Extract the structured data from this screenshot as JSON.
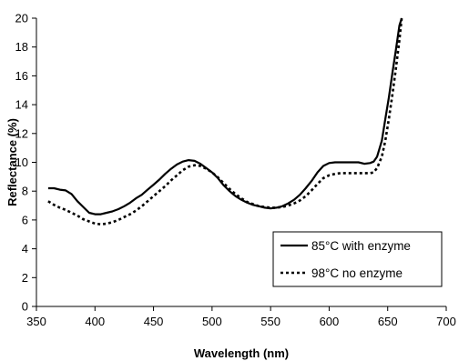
{
  "chart_data": {
    "type": "line",
    "xlabel": "Wavelength (nm)",
    "ylabel": "Reflectance (%)",
    "xlim": [
      350,
      700
    ],
    "ylim": [
      0,
      20
    ],
    "x_ticks": [
      350,
      400,
      450,
      500,
      550,
      600,
      650,
      700
    ],
    "y_ticks": [
      0,
      2,
      4,
      6,
      8,
      10,
      12,
      14,
      16,
      18,
      20
    ],
    "grid": false,
    "legend_position": "bottom-right",
    "series": [
      {
        "name": "85°C with enzyme",
        "line_style": "solid",
        "color": "#000000",
        "points": [
          [
            360,
            8.2
          ],
          [
            365,
            8.2
          ],
          [
            370,
            8.1
          ],
          [
            375,
            8.05
          ],
          [
            380,
            7.8
          ],
          [
            385,
            7.3
          ],
          [
            390,
            6.9
          ],
          [
            395,
            6.5
          ],
          [
            400,
            6.4
          ],
          [
            405,
            6.4
          ],
          [
            410,
            6.5
          ],
          [
            415,
            6.6
          ],
          [
            420,
            6.75
          ],
          [
            425,
            6.95
          ],
          [
            430,
            7.2
          ],
          [
            435,
            7.5
          ],
          [
            440,
            7.75
          ],
          [
            445,
            8.1
          ],
          [
            450,
            8.45
          ],
          [
            455,
            8.8
          ],
          [
            460,
            9.2
          ],
          [
            465,
            9.55
          ],
          [
            470,
            9.85
          ],
          [
            475,
            10.05
          ],
          [
            480,
            10.15
          ],
          [
            485,
            10.1
          ],
          [
            490,
            9.9
          ],
          [
            495,
            9.6
          ],
          [
            500,
            9.3
          ],
          [
            505,
            8.9
          ],
          [
            510,
            8.4
          ],
          [
            515,
            8.0
          ],
          [
            520,
            7.65
          ],
          [
            525,
            7.4
          ],
          [
            530,
            7.2
          ],
          [
            535,
            7.05
          ],
          [
            540,
            6.95
          ],
          [
            545,
            6.85
          ],
          [
            550,
            6.8
          ],
          [
            555,
            6.85
          ],
          [
            560,
            6.95
          ],
          [
            565,
            7.15
          ],
          [
            570,
            7.4
          ],
          [
            575,
            7.75
          ],
          [
            580,
            8.2
          ],
          [
            585,
            8.7
          ],
          [
            590,
            9.3
          ],
          [
            595,
            9.75
          ],
          [
            600,
            9.95
          ],
          [
            605,
            10.0
          ],
          [
            610,
            10.0
          ],
          [
            615,
            10.0
          ],
          [
            620,
            10.0
          ],
          [
            625,
            10.0
          ],
          [
            630,
            9.9
          ],
          [
            635,
            9.95
          ],
          [
            638,
            10.05
          ],
          [
            641,
            10.4
          ],
          [
            645,
            11.5
          ],
          [
            648,
            13.0
          ],
          [
            651,
            14.5
          ],
          [
            654,
            16.2
          ],
          [
            657,
            17.8
          ],
          [
            660,
            19.5
          ],
          [
            662,
            20
          ]
        ]
      },
      {
        "name": "98°C no enzyme",
        "line_style": "dotted",
        "color": "#000000",
        "points": [
          [
            360,
            7.3
          ],
          [
            365,
            7.05
          ],
          [
            370,
            6.85
          ],
          [
            375,
            6.7
          ],
          [
            380,
            6.5
          ],
          [
            385,
            6.3
          ],
          [
            390,
            6.05
          ],
          [
            395,
            5.9
          ],
          [
            400,
            5.75
          ],
          [
            405,
            5.7
          ],
          [
            410,
            5.75
          ],
          [
            415,
            5.85
          ],
          [
            420,
            6.0
          ],
          [
            425,
            6.2
          ],
          [
            430,
            6.4
          ],
          [
            435,
            6.65
          ],
          [
            440,
            6.95
          ],
          [
            445,
            7.3
          ],
          [
            450,
            7.65
          ],
          [
            455,
            8.0
          ],
          [
            460,
            8.35
          ],
          [
            465,
            8.75
          ],
          [
            470,
            9.1
          ],
          [
            475,
            9.45
          ],
          [
            480,
            9.7
          ],
          [
            485,
            9.8
          ],
          [
            490,
            9.75
          ],
          [
            495,
            9.55
          ],
          [
            500,
            9.3
          ],
          [
            505,
            8.95
          ],
          [
            510,
            8.55
          ],
          [
            515,
            8.15
          ],
          [
            520,
            7.8
          ],
          [
            525,
            7.5
          ],
          [
            530,
            7.25
          ],
          [
            535,
            7.1
          ],
          [
            540,
            6.95
          ],
          [
            545,
            6.9
          ],
          [
            550,
            6.85
          ],
          [
            555,
            6.85
          ],
          [
            560,
            6.9
          ],
          [
            565,
            7.0
          ],
          [
            570,
            7.15
          ],
          [
            575,
            7.35
          ],
          [
            580,
            7.65
          ],
          [
            585,
            8.05
          ],
          [
            590,
            8.5
          ],
          [
            595,
            8.9
          ],
          [
            600,
            9.1
          ],
          [
            605,
            9.2
          ],
          [
            610,
            9.25
          ],
          [
            615,
            9.25
          ],
          [
            620,
            9.25
          ],
          [
            625,
            9.25
          ],
          [
            630,
            9.25
          ],
          [
            635,
            9.25
          ],
          [
            638,
            9.3
          ],
          [
            641,
            9.6
          ],
          [
            645,
            10.4
          ],
          [
            648,
            11.5
          ],
          [
            651,
            13.0
          ],
          [
            654,
            14.7
          ],
          [
            657,
            16.5
          ],
          [
            660,
            18.5
          ],
          [
            662,
            20
          ]
        ]
      }
    ]
  }
}
